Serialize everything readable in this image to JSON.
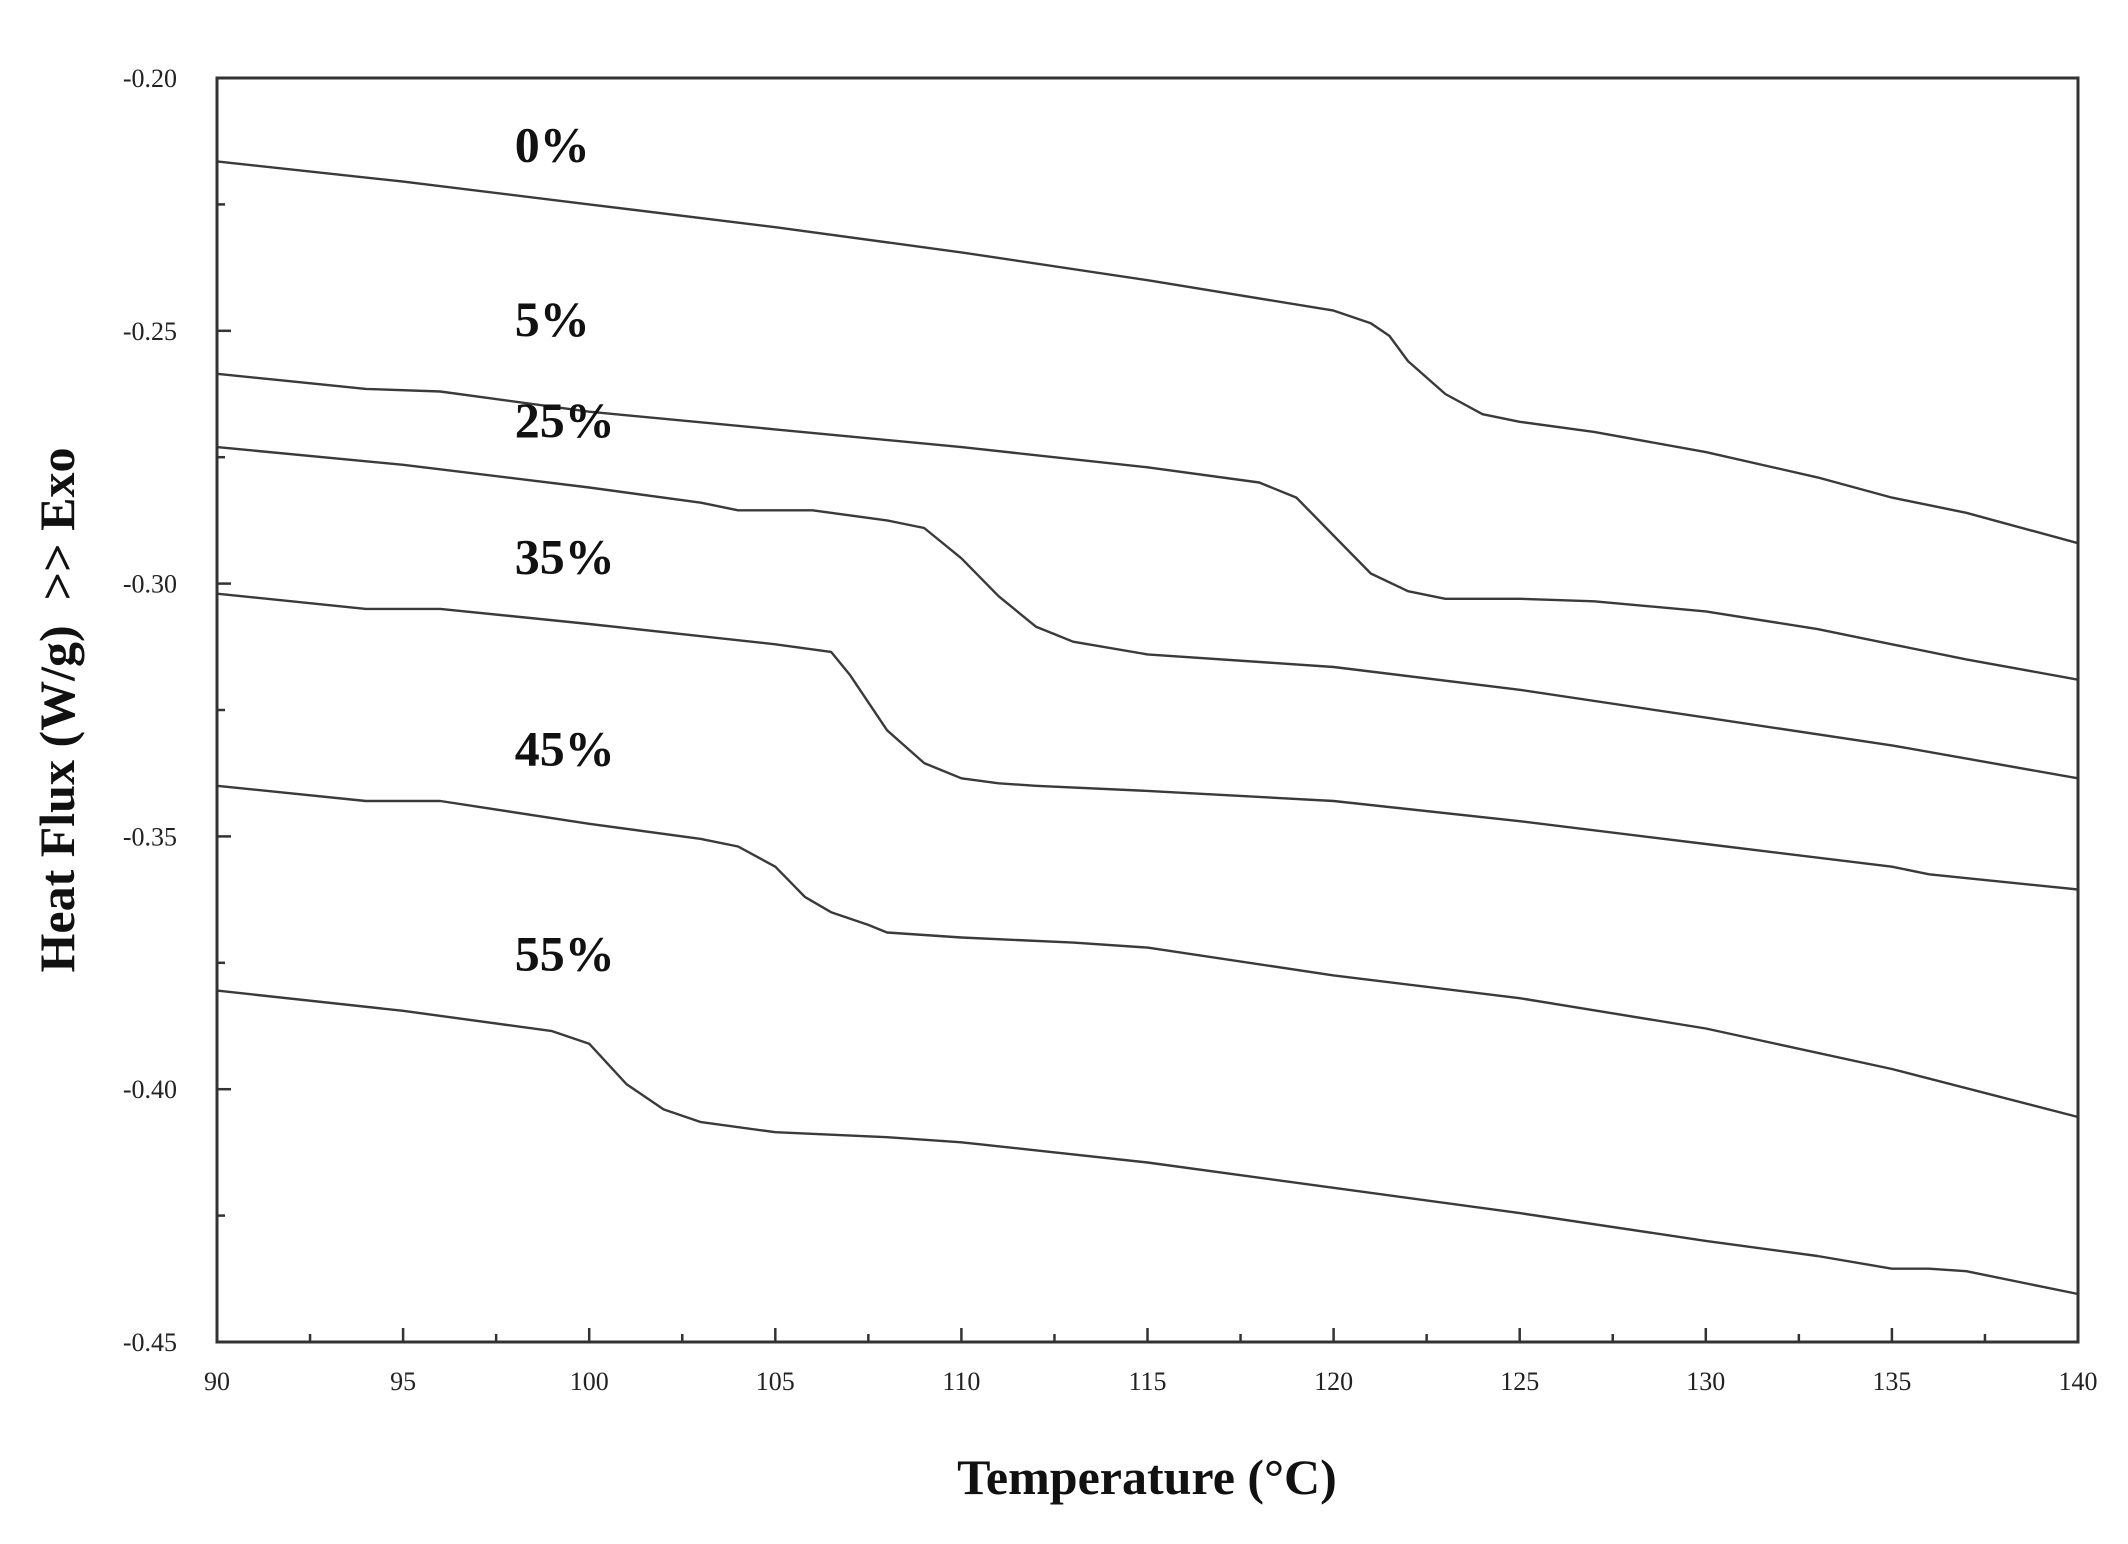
{
  "chart_data": {
    "type": "line",
    "title": "",
    "xlabel": "Temperature (°C)",
    "ylabel": "Heat Flux (W/g)  >> Exo",
    "xlim": [
      90,
      140
    ],
    "ylim": [
      -0.45,
      -0.2
    ],
    "xticks": [
      90,
      95,
      100,
      105,
      110,
      115,
      120,
      125,
      130,
      135,
      140
    ],
    "xtick_labels": [
      "90",
      "95",
      "100",
      "105",
      "110",
      "115",
      "120",
      "125",
      "130",
      "135",
      "140"
    ],
    "yticks": [
      -0.2,
      -0.25,
      -0.3,
      -0.35,
      -0.4,
      -0.45
    ],
    "ytick_labels": [
      "-0.20",
      "-0.25",
      "-0.30",
      "-0.35",
      "-0.40",
      "-0.45"
    ],
    "grid": false,
    "series": [
      {
        "name": "0%",
        "label_at": [
          98,
          -0.2165
        ],
        "x": [
          90,
          95,
          100,
          105,
          110,
          115,
          120,
          121,
          121.5,
          122,
          123,
          124,
          125,
          127,
          130,
          133,
          135,
          137,
          140
        ],
        "y": [
          -0.2165,
          -0.2205,
          -0.225,
          -0.2295,
          -0.2345,
          -0.24,
          -0.246,
          -0.2485,
          -0.251,
          -0.256,
          -0.2625,
          -0.2665,
          -0.268,
          -0.27,
          -0.274,
          -0.279,
          -0.283,
          -0.286,
          -0.292
        ]
      },
      {
        "name": "5%",
        "label_at": [
          98,
          -0.251
        ],
        "x": [
          90,
          94,
          96,
          100,
          105,
          110,
          115,
          118,
          119,
          120,
          121,
          122,
          123,
          125,
          127,
          130,
          133,
          135,
          137,
          140
        ],
        "y": [
          -0.2585,
          -0.2615,
          -0.262,
          -0.266,
          -0.2695,
          -0.273,
          -0.277,
          -0.28,
          -0.283,
          -0.2905,
          -0.298,
          -0.3015,
          -0.303,
          -0.303,
          -0.3035,
          -0.3055,
          -0.309,
          -0.312,
          -0.315,
          -0.319
        ]
      },
      {
        "name": "25%",
        "label_at": [
          98,
          -0.271
        ],
        "x": [
          90,
          95,
          100,
          103,
          104,
          106,
          108,
          109,
          110,
          111,
          112,
          113,
          115,
          120,
          125,
          130,
          135,
          140
        ],
        "y": [
          -0.273,
          -0.2765,
          -0.281,
          -0.284,
          -0.2855,
          -0.2855,
          -0.2875,
          -0.289,
          -0.295,
          -0.3025,
          -0.3085,
          -0.3115,
          -0.314,
          -0.3165,
          -0.321,
          -0.3265,
          -0.332,
          -0.3385
        ]
      },
      {
        "name": "35%",
        "label_at": [
          98,
          -0.298
        ],
        "x": [
          90,
          94,
          96,
          100,
          105,
          106.5,
          107,
          108,
          109,
          110,
          111,
          112,
          115,
          120,
          125,
          130,
          135,
          136,
          140
        ],
        "y": [
          -0.302,
          -0.305,
          -0.305,
          -0.308,
          -0.312,
          -0.3135,
          -0.318,
          -0.329,
          -0.3355,
          -0.3385,
          -0.3395,
          -0.34,
          -0.341,
          -0.343,
          -0.347,
          -0.3515,
          -0.356,
          -0.3575,
          -0.3605
        ]
      },
      {
        "name": "45%",
        "label_at": [
          98,
          -0.336
        ],
        "x": [
          90,
          94,
          96,
          100,
          103,
          104,
          105,
          105.8,
          106.5,
          107.5,
          108,
          110,
          113,
          115,
          120,
          125,
          130,
          135,
          140
        ],
        "y": [
          -0.34,
          -0.343,
          -0.343,
          -0.3475,
          -0.3505,
          -0.352,
          -0.356,
          -0.362,
          -0.365,
          -0.3675,
          -0.369,
          -0.37,
          -0.371,
          -0.372,
          -0.3775,
          -0.382,
          -0.388,
          -0.396,
          -0.4055
        ]
      },
      {
        "name": "55%",
        "label_at": [
          98,
          -0.3765
        ],
        "x": [
          90,
          95,
          99,
          100,
          101,
          102,
          103,
          105,
          108,
          110,
          115,
          120,
          125,
          130,
          133,
          135,
          136,
          137,
          140
        ],
        "y": [
          -0.3805,
          -0.3845,
          -0.3885,
          -0.391,
          -0.399,
          -0.404,
          -0.4065,
          -0.4085,
          -0.4095,
          -0.4105,
          -0.4145,
          -0.4195,
          -0.4245,
          -0.43,
          -0.433,
          -0.4355,
          -0.4355,
          -0.436,
          -0.4405
        ]
      }
    ]
  }
}
